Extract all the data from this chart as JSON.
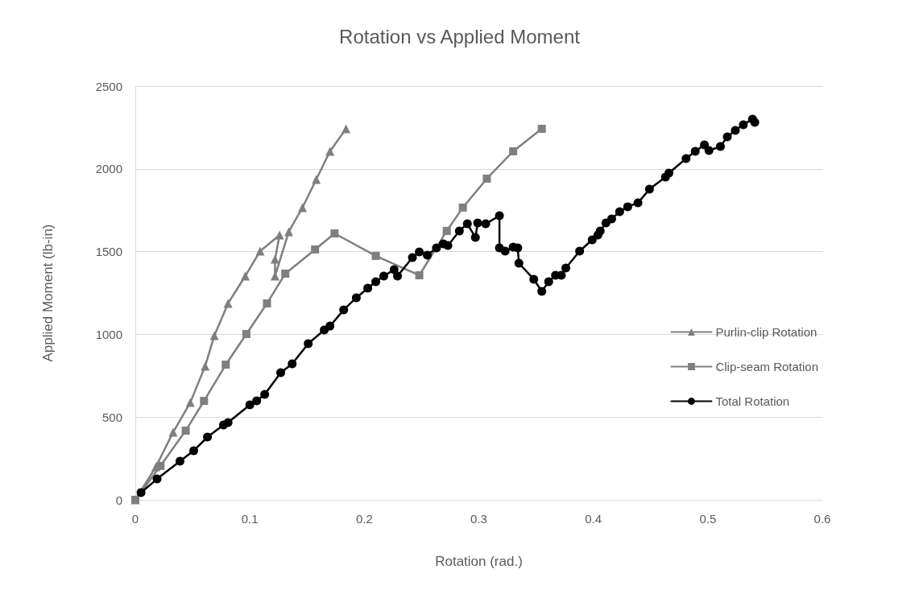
{
  "chart_data": {
    "type": "line",
    "title": "Rotation vs Applied Moment",
    "xlabel": "Rotation (rad.)",
    "ylabel": "Applied Moment (lb-in)",
    "xlim": [
      0,
      0.6
    ],
    "xticks": [
      0,
      0.1,
      0.2,
      0.3,
      0.4,
      0.5,
      0.6
    ],
    "ylim": [
      0,
      2500
    ],
    "yticks": [
      0,
      500,
      1000,
      1500,
      2000,
      2500
    ],
    "grid": "y",
    "legend": "right",
    "line_style": "solid",
    "series": [
      {
        "name": "Purlin-clip Rotation",
        "color": "#7f7f7f",
        "marker": "triangle",
        "x": [
          0,
          0.018,
          0.033,
          0.048,
          0.061,
          0.069,
          0.081,
          0.096,
          0.109,
          0.126,
          0.122,
          0.122,
          0.134,
          0.146,
          0.158,
          0.17,
          0.184
        ],
        "values": [
          0,
          200,
          408,
          588,
          808,
          992,
          1187,
          1352,
          1503,
          1600,
          1454,
          1352,
          1620,
          1766,
          1936,
          2106,
          2242
        ]
      },
      {
        "name": "Clip-seam Rotation",
        "color": "#7f7f7f",
        "marker": "square",
        "x": [
          0,
          0.022,
          0.044,
          0.06,
          0.079,
          0.097,
          0.115,
          0.131,
          0.157,
          0.174,
          0.21,
          0.248,
          0.272,
          0.286,
          0.307,
          0.33,
          0.355
        ],
        "values": [
          0,
          205,
          418,
          598,
          817,
          1002,
          1187,
          1367,
          1513,
          1610,
          1474,
          1357,
          1625,
          1766,
          1941,
          2106,
          2242
        ]
      },
      {
        "name": "Total Rotation",
        "color": "#000000",
        "marker": "circle",
        "x": [
          0.005,
          0.019,
          0.039,
          0.051,
          0.063,
          0.077,
          0.081,
          0.1,
          0.106,
          0.113,
          0.127,
          0.137,
          0.151,
          0.165,
          0.17,
          0.182,
          0.193,
          0.203,
          0.21,
          0.217,
          0.226,
          0.229,
          0.242,
          0.248,
          0.255,
          0.263,
          0.269,
          0.273,
          0.283,
          0.29,
          0.297,
          0.299,
          0.306,
          0.318,
          0.318,
          0.323,
          0.33,
          0.334,
          0.335,
          0.348,
          0.355,
          0.361,
          0.367,
          0.372,
          0.376,
          0.388,
          0.399,
          0.404,
          0.406,
          0.411,
          0.416,
          0.423,
          0.43,
          0.439,
          0.449,
          0.463,
          0.466,
          0.481,
          0.489,
          0.497,
          0.501,
          0.511,
          0.517,
          0.524,
          0.531,
          0.539,
          0.541
        ],
        "values": [
          44,
          126,
          233,
          297,
          379,
          452,
          467,
          574,
          598,
          637,
          768,
          822,
          944,
          1026,
          1050,
          1148,
          1221,
          1279,
          1318,
          1352,
          1391,
          1352,
          1464,
          1498,
          1479,
          1522,
          1547,
          1537,
          1625,
          1668,
          1586,
          1673,
          1668,
          1717,
          1522,
          1503,
          1527,
          1522,
          1430,
          1333,
          1260,
          1318,
          1357,
          1357,
          1401,
          1503,
          1571,
          1600,
          1625,
          1673,
          1698,
          1741,
          1771,
          1795,
          1877,
          1950,
          1975,
          2062,
          2106,
          2145,
          2111,
          2135,
          2194,
          2233,
          2267,
          2301,
          2281
        ]
      }
    ]
  }
}
